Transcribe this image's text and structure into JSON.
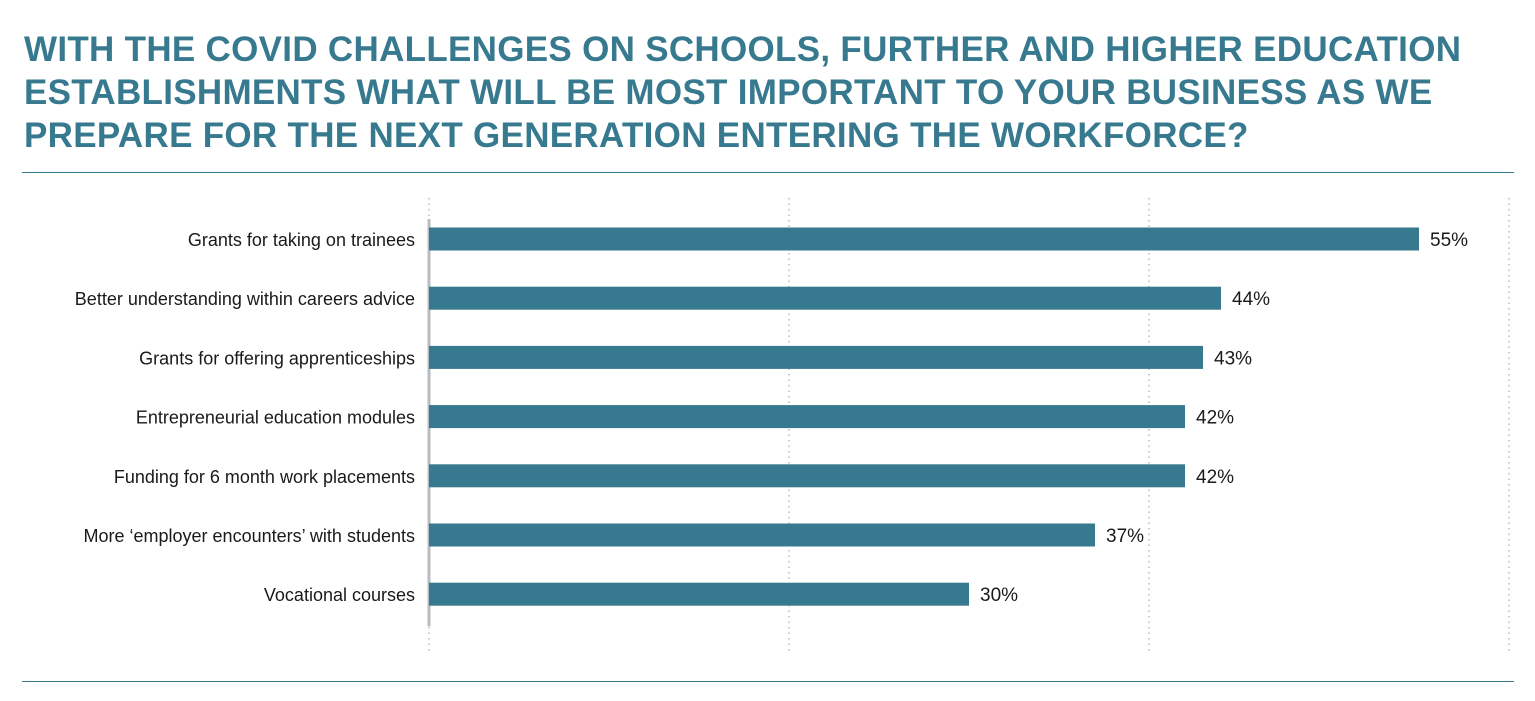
{
  "title": "WITH THE COVID CHALLENGES ON SCHOOLS, FURTHER AND HIGHER EDUCATION ESTABLISHMENTS WHAT WILL BE MOST IMPORTANT TO YOUR BUSINESS AS WE PREPARE FOR THE NEXT GENERATION ENTERING THE WORKFORCE?",
  "colors": {
    "accent": "#37798f",
    "bar": "#37798f",
    "text": "#1a1a1a",
    "axis": "#b8bcc2",
    "grid": "#b8bcc2"
  },
  "chart_data": {
    "type": "bar",
    "orientation": "horizontal",
    "categories": [
      "Grants for taking on trainees",
      "Better understanding within careers advice",
      "Grants for offering apprenticeships",
      "Entrepreneurial education modules",
      "Funding for 6 month work placements",
      "More ‘employer encounters’ with students",
      "Vocational courses"
    ],
    "values": [
      55,
      44,
      43,
      42,
      42,
      37,
      30
    ],
    "value_labels": [
      "55%",
      "44%",
      "43%",
      "42%",
      "42%",
      "37%",
      "30%"
    ],
    "xlim": [
      0,
      60
    ],
    "unit": "%",
    "grid": true,
    "gridlines_at": [
      20,
      40,
      60
    ],
    "legend": "none"
  }
}
